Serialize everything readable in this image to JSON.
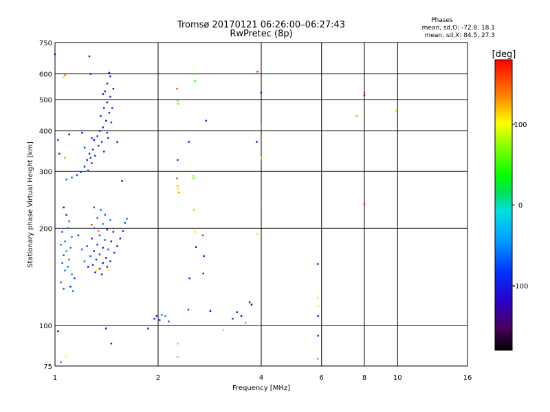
{
  "chart_data": {
    "type": "scatter",
    "title": "Tromsø 20170121 06:26:00–06:27:43",
    "subtitle": "RwPretec (8p)",
    "phases_box": {
      "heading": "Phases",
      "line_o": "mean, sd,O: -72.8, 18.1",
      "line_x": "mean, sd,X:  84.5, 27.3"
    },
    "xlabel": "Frequency [MHz]",
    "ylabel": "Stationary phase Virtual Height [km]",
    "xscale": "log",
    "yscale": "log",
    "xlim": [
      1,
      16
    ],
    "ylim": [
      75,
      750
    ],
    "xticks": [
      {
        "v": 1,
        "label": "1"
      },
      {
        "v": 2,
        "label": "2"
      },
      {
        "v": 4,
        "label": "4"
      },
      {
        "v": 6,
        "label": "6"
      },
      {
        "v": 8,
        "label": "8"
      },
      {
        "v": 10,
        "label": "10"
      },
      {
        "v": 16,
        "label": "16"
      }
    ],
    "yticks": [
      {
        "v": 75,
        "label": "75"
      },
      {
        "v": 100,
        "label": "100"
      },
      {
        "v": 200,
        "label": "200"
      },
      {
        "v": 300,
        "label": "300"
      },
      {
        "v": 400,
        "label": "400"
      },
      {
        "v": 500,
        "label": "500"
      },
      {
        "v": 600,
        "label": "600"
      },
      {
        "v": 750,
        "label": "750"
      }
    ],
    "grid": true,
    "colorbar": {
      "label": "[deg]",
      "range": [
        -180,
        180
      ],
      "ticks": [
        {
          "v": 100,
          "label": "100"
        },
        {
          "v": 0,
          "label": "0"
        },
        {
          "v": -100,
          "label": "-100"
        }
      ]
    },
    "points": [
      {
        "f": 1.0,
        "h": 690,
        "p": -120
      },
      {
        "f": 1.07,
        "h": 595,
        "p": 150
      },
      {
        "f": 1.06,
        "h": 585,
        "p": 120
      },
      {
        "f": 1.26,
        "h": 680,
        "p": -100
      },
      {
        "f": 1.27,
        "h": 600,
        "p": -100
      },
      {
        "f": 1.44,
        "h": 605,
        "p": -100
      },
      {
        "f": 1.45,
        "h": 590,
        "p": -95
      },
      {
        "f": 1.42,
        "h": 560,
        "p": -90
      },
      {
        "f": 1.4,
        "h": 530,
        "p": -100
      },
      {
        "f": 1.38,
        "h": 520,
        "p": -110
      },
      {
        "f": 1.45,
        "h": 510,
        "p": -90
      },
      {
        "f": 1.42,
        "h": 490,
        "p": -120
      },
      {
        "f": 1.39,
        "h": 470,
        "p": -100
      },
      {
        "f": 1.44,
        "h": 455,
        "p": -85
      },
      {
        "f": 1.36,
        "h": 445,
        "p": -95
      },
      {
        "f": 1.41,
        "h": 430,
        "p": -110
      },
      {
        "f": 1.46,
        "h": 425,
        "p": -90
      },
      {
        "f": 1.38,
        "h": 410,
        "p": -100
      },
      {
        "f": 1.35,
        "h": 400,
        "p": -95
      },
      {
        "f": 1.42,
        "h": 395,
        "p": -85
      },
      {
        "f": 1.33,
        "h": 385,
        "p": -100
      },
      {
        "f": 1.3,
        "h": 375,
        "p": -110
      },
      {
        "f": 1.37,
        "h": 370,
        "p": -90
      },
      {
        "f": 1.34,
        "h": 360,
        "p": -95
      },
      {
        "f": 1.29,
        "h": 350,
        "p": -100
      },
      {
        "f": 1.26,
        "h": 340,
        "p": -90
      },
      {
        "f": 1.31,
        "h": 335,
        "p": -85
      },
      {
        "f": 1.24,
        "h": 325,
        "p": -95
      },
      {
        "f": 1.28,
        "h": 318,
        "p": -100
      },
      {
        "f": 1.22,
        "h": 310,
        "p": -90
      },
      {
        "f": 1.25,
        "h": 302,
        "p": -80
      },
      {
        "f": 1.19,
        "h": 298,
        "p": -70
      },
      {
        "f": 1.16,
        "h": 292,
        "p": -75
      },
      {
        "f": 1.12,
        "h": 287,
        "p": -60
      },
      {
        "f": 1.08,
        "h": 283,
        "p": -65
      },
      {
        "f": 1.2,
        "h": 395,
        "p": -120
      },
      {
        "f": 1.1,
        "h": 390,
        "p": -110
      },
      {
        "f": 1.28,
        "h": 380,
        "p": -100
      },
      {
        "f": 1.22,
        "h": 355,
        "p": -90
      },
      {
        "f": 1.27,
        "h": 330,
        "p": -85
      },
      {
        "f": 1.39,
        "h": 345,
        "p": -90
      },
      {
        "f": 1.43,
        "h": 380,
        "p": -100
      },
      {
        "f": 1.47,
        "h": 470,
        "p": -85
      },
      {
        "f": 1.48,
        "h": 540,
        "p": -95
      },
      {
        "f": 1.07,
        "h": 330,
        "p": 130
      },
      {
        "f": 1.52,
        "h": 370,
        "p": -110
      },
      {
        "f": 1.57,
        "h": 280,
        "p": -120
      },
      {
        "f": 1.02,
        "h": 375,
        "p": -80
      },
      {
        "f": 1.03,
        "h": 340,
        "p": -90
      },
      {
        "f": 1.06,
        "h": 232,
        "p": -130
      },
      {
        "f": 1.08,
        "h": 220,
        "p": -100
      },
      {
        "f": 1.1,
        "h": 210,
        "p": -60
      },
      {
        "f": 1.09,
        "h": 200,
        "p": -65
      },
      {
        "f": 1.05,
        "h": 195,
        "p": -70
      },
      {
        "f": 1.12,
        "h": 188,
        "p": -60
      },
      {
        "f": 1.07,
        "h": 182,
        "p": -55
      },
      {
        "f": 1.04,
        "h": 178,
        "p": -65
      },
      {
        "f": 1.11,
        "h": 174,
        "p": -60
      },
      {
        "f": 1.08,
        "h": 170,
        "p": -50
      },
      {
        "f": 1.06,
        "h": 165,
        "p": -70
      },
      {
        "f": 1.1,
        "h": 160,
        "p": -60
      },
      {
        "f": 1.05,
        "h": 156,
        "p": -65
      },
      {
        "f": 1.09,
        "h": 152,
        "p": -55
      },
      {
        "f": 1.07,
        "h": 148,
        "p": -70
      },
      {
        "f": 1.12,
        "h": 144,
        "p": -60
      },
      {
        "f": 1.14,
        "h": 140,
        "p": -80
      },
      {
        "f": 1.04,
        "h": 136,
        "p": -65
      },
      {
        "f": 1.06,
        "h": 130,
        "p": -70
      },
      {
        "f": 1.13,
        "h": 128,
        "p": -60
      },
      {
        "f": 1.11,
        "h": 132,
        "p": -100
      },
      {
        "f": 1.3,
        "h": 232,
        "p": -70
      },
      {
        "f": 1.36,
        "h": 228,
        "p": -60
      },
      {
        "f": 1.4,
        "h": 220,
        "p": -65
      },
      {
        "f": 1.33,
        "h": 215,
        "p": -70
      },
      {
        "f": 1.45,
        "h": 212,
        "p": -60
      },
      {
        "f": 1.38,
        "h": 206,
        "p": -50
      },
      {
        "f": 1.3,
        "h": 200,
        "p": -65
      },
      {
        "f": 1.42,
        "h": 198,
        "p": -80
      },
      {
        "f": 1.48,
        "h": 195,
        "p": -90
      },
      {
        "f": 1.35,
        "h": 190,
        "p": -70
      },
      {
        "f": 1.28,
        "h": 186,
        "p": -100
      },
      {
        "f": 1.4,
        "h": 184,
        "p": -60
      },
      {
        "f": 1.46,
        "h": 182,
        "p": -110
      },
      {
        "f": 1.33,
        "h": 178,
        "p": -90
      },
      {
        "f": 1.24,
        "h": 176,
        "p": -80
      },
      {
        "f": 1.38,
        "h": 174,
        "p": -100
      },
      {
        "f": 1.43,
        "h": 172,
        "p": -70
      },
      {
        "f": 1.3,
        "h": 170,
        "p": -95
      },
      {
        "f": 1.49,
        "h": 168,
        "p": -100
      },
      {
        "f": 1.35,
        "h": 166,
        "p": -85
      },
      {
        "f": 1.27,
        "h": 164,
        "p": -70
      },
      {
        "f": 1.41,
        "h": 162,
        "p": -110
      },
      {
        "f": 1.32,
        "h": 160,
        "p": -100
      },
      {
        "f": 1.45,
        "h": 158,
        "p": -90
      },
      {
        "f": 1.38,
        "h": 156,
        "p": -100
      },
      {
        "f": 1.29,
        "h": 154,
        "p": -80
      },
      {
        "f": 1.42,
        "h": 152,
        "p": -95
      },
      {
        "f": 1.35,
        "h": 150,
        "p": -110
      },
      {
        "f": 1.52,
        "h": 176,
        "p": -120
      },
      {
        "f": 1.55,
        "h": 186,
        "p": -100
      },
      {
        "f": 1.58,
        "h": 196,
        "p": -90
      },
      {
        "f": 1.6,
        "h": 208,
        "p": -80
      },
      {
        "f": 1.62,
        "h": 214,
        "p": -70
      },
      {
        "f": 1.2,
        "h": 172,
        "p": -60
      },
      {
        "f": 1.22,
        "h": 158,
        "p": -65
      },
      {
        "f": 1.25,
        "h": 152,
        "p": -100
      },
      {
        "f": 1.31,
        "h": 146,
        "p": -110
      },
      {
        "f": 1.37,
        "h": 144,
        "p": -100
      },
      {
        "f": 1.34,
        "h": 196,
        "p": 150
      },
      {
        "f": 1.28,
        "h": 205,
        "p": 160
      },
      {
        "f": 1.32,
        "h": 148,
        "p": 110
      },
      {
        "f": 1.44,
        "h": 148,
        "p": 100
      },
      {
        "f": 1.17,
        "h": 190,
        "p": -90
      },
      {
        "f": 1.02,
        "h": 96,
        "p": -115
      },
      {
        "f": 1.08,
        "h": 80,
        "p": 100
      },
      {
        "f": 1.04,
        "h": 77,
        "p": -60
      },
      {
        "f": 1.41,
        "h": 98,
        "p": -110
      },
      {
        "f": 1.46,
        "h": 88,
        "p": -100
      },
      {
        "f": 1.87,
        "h": 98,
        "p": -100
      },
      {
        "f": 1.95,
        "h": 105,
        "p": -100
      },
      {
        "f": 1.98,
        "h": 107,
        "p": -110
      },
      {
        "f": 2.02,
        "h": 104,
        "p": -90
      },
      {
        "f": 2.05,
        "h": 108,
        "p": -60
      },
      {
        "f": 2.1,
        "h": 107,
        "p": -50
      },
      {
        "f": 2.15,
        "h": 103,
        "p": -70
      },
      {
        "f": 2.27,
        "h": 285,
        "p": 160
      },
      {
        "f": 2.28,
        "h": 270,
        "p": 120
      },
      {
        "f": 2.29,
        "h": 265,
        "p": 110
      },
      {
        "f": 2.3,
        "h": 258,
        "p": 130
      },
      {
        "f": 2.27,
        "h": 540,
        "p": 150
      },
      {
        "f": 2.28,
        "h": 495,
        "p": 70
      },
      {
        "f": 2.29,
        "h": 485,
        "p": 60
      },
      {
        "f": 2.28,
        "h": 325,
        "p": -90
      },
      {
        "f": 2.28,
        "h": 88,
        "p": 120
      },
      {
        "f": 2.28,
        "h": 80,
        "p": 60
      },
      {
        "f": 2.46,
        "h": 370,
        "p": -90
      },
      {
        "f": 2.47,
        "h": 140,
        "p": -100
      },
      {
        "f": 2.45,
        "h": 112,
        "p": -80
      },
      {
        "f": 2.55,
        "h": 600,
        "p": 50
      },
      {
        "f": 2.56,
        "h": 570,
        "p": 40
      },
      {
        "f": 2.53,
        "h": 290,
        "p": 80
      },
      {
        "f": 2.54,
        "h": 285,
        "p": 60
      },
      {
        "f": 2.54,
        "h": 228,
        "p": 120
      },
      {
        "f": 2.56,
        "h": 195,
        "p": 110
      },
      {
        "f": 2.58,
        "h": 175,
        "p": -100
      },
      {
        "f": 2.7,
        "h": 190,
        "p": 170
      },
      {
        "f": 2.72,
        "h": 164,
        "p": -110
      },
      {
        "f": 2.71,
        "h": 145,
        "p": -90
      },
      {
        "f": 2.76,
        "h": 430,
        "p": -110
      },
      {
        "f": 2.84,
        "h": 111,
        "p": -120
      },
      {
        "f": 3.1,
        "h": 97,
        "p": 80
      },
      {
        "f": 3.3,
        "h": 105,
        "p": -80
      },
      {
        "f": 3.4,
        "h": 110,
        "p": -90
      },
      {
        "f": 3.5,
        "h": 107,
        "p": -100
      },
      {
        "f": 3.6,
        "h": 102,
        "p": 140
      },
      {
        "f": 3.7,
        "h": 118,
        "p": -130
      },
      {
        "f": 3.75,
        "h": 116,
        "p": -150
      },
      {
        "f": 3.9,
        "h": 610,
        "p": 170
      },
      {
        "f": 3.88,
        "h": 370,
        "p": -100
      },
      {
        "f": 3.9,
        "h": 192,
        "p": 110
      },
      {
        "f": 3.92,
        "h": 100,
        "p": 120
      },
      {
        "f": 4.0,
        "h": 525,
        "p": -120
      },
      {
        "f": 4.0,
        "h": 410,
        "p": 130
      },
      {
        "f": 4.01,
        "h": 330,
        "p": 110
      },
      {
        "f": 4.0,
        "h": 235,
        "p": 130
      },
      {
        "f": 5.85,
        "h": 155,
        "p": -100
      },
      {
        "f": 5.86,
        "h": 122,
        "p": 110
      },
      {
        "f": 5.87,
        "h": 115,
        "p": 90
      },
      {
        "f": 5.86,
        "h": 107,
        "p": -90
      },
      {
        "f": 5.86,
        "h": 93,
        "p": -80
      },
      {
        "f": 5.85,
        "h": 79,
        "p": 140
      },
      {
        "f": 7.6,
        "h": 445,
        "p": 130
      },
      {
        "f": 8.0,
        "h": 525,
        "p": 170
      },
      {
        "f": 8.0,
        "h": 515,
        "p": -90
      },
      {
        "f": 8.0,
        "h": 237,
        "p": 170
      },
      {
        "f": 9.9,
        "h": 462,
        "p": 110
      }
    ]
  }
}
